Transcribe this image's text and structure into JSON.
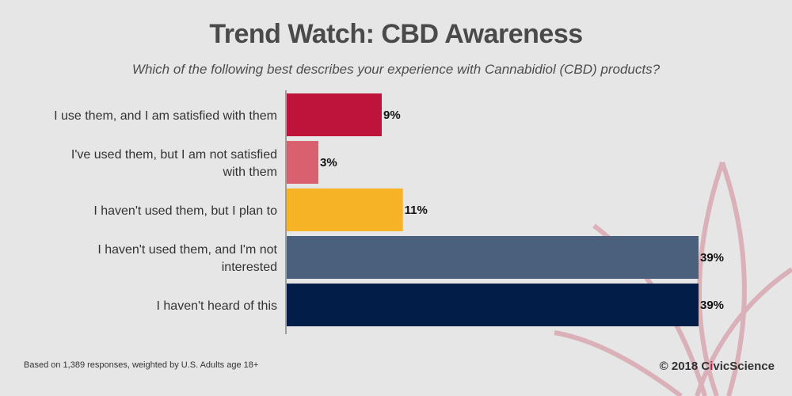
{
  "title": "Trend Watch: CBD Awareness",
  "subtitle": "Which of the following best describes your experience with Cannabidiol (CBD) products?",
  "footnote": "Based on 1,389 responses, weighted by U.S. Adults age 18+",
  "copyright": {
    "prefix": "© 2018 ",
    "civic": "C",
    "i": "i",
    "vic": "vic",
    "science": "Science"
  },
  "chart_data": {
    "type": "bar",
    "orientation": "horizontal",
    "title": "Trend Watch: CBD Awareness",
    "subtitle": "Which of the following best describes your experience with Cannabidiol (CBD) products?",
    "categories": [
      [
        "I use them, and I am satisfied with them"
      ],
      [
        "I've used them, but I am not satisfied",
        "with them"
      ],
      [
        "I haven't used them, but I plan to"
      ],
      [
        "I haven't used them, and I'm not",
        "interested"
      ],
      [
        "I haven't heard of this"
      ]
    ],
    "values": [
      9,
      3,
      11,
      39,
      39
    ],
    "value_labels": [
      "9%",
      "3%",
      "11%",
      "39%",
      "39%"
    ],
    "colors": [
      "#be143c",
      "#d9606e",
      "#f5b325",
      "#4b607d",
      "#021d47"
    ],
    "xlim": [
      0,
      39
    ],
    "grid": false,
    "legend": "none"
  }
}
